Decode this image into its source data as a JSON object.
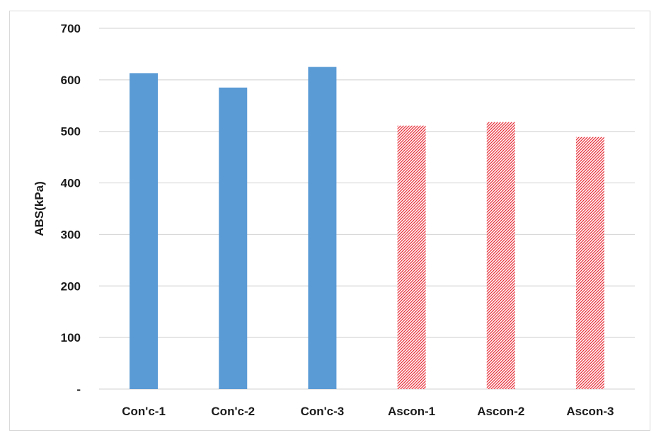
{
  "chart_data": {
    "type": "bar",
    "title": "",
    "xlabel": "",
    "ylabel": "ABS(kPa)",
    "categories": [
      "Con'c-1",
      "Con'c-2",
      "Con'c-3",
      "Ascon-1",
      "Ascon-2",
      "Ascon-3"
    ],
    "values": [
      613,
      585,
      625,
      511,
      518,
      489
    ],
    "ylim": [
      0,
      700
    ],
    "yticks": [
      0,
      100,
      200,
      300,
      400,
      500,
      600,
      700
    ],
    "ytick_labels": [
      "-",
      "100",
      "200",
      "300",
      "400",
      "500",
      "600",
      "700"
    ],
    "grid": true,
    "legend": "none",
    "bar_styles": [
      "solid",
      "solid",
      "solid",
      "hatched",
      "hatched",
      "hatched"
    ],
    "colors": {
      "solid": "#5b9bd5",
      "hatch": "#e8303a",
      "grid": "#d9d9d9",
      "text": "#1a1a1a"
    }
  }
}
